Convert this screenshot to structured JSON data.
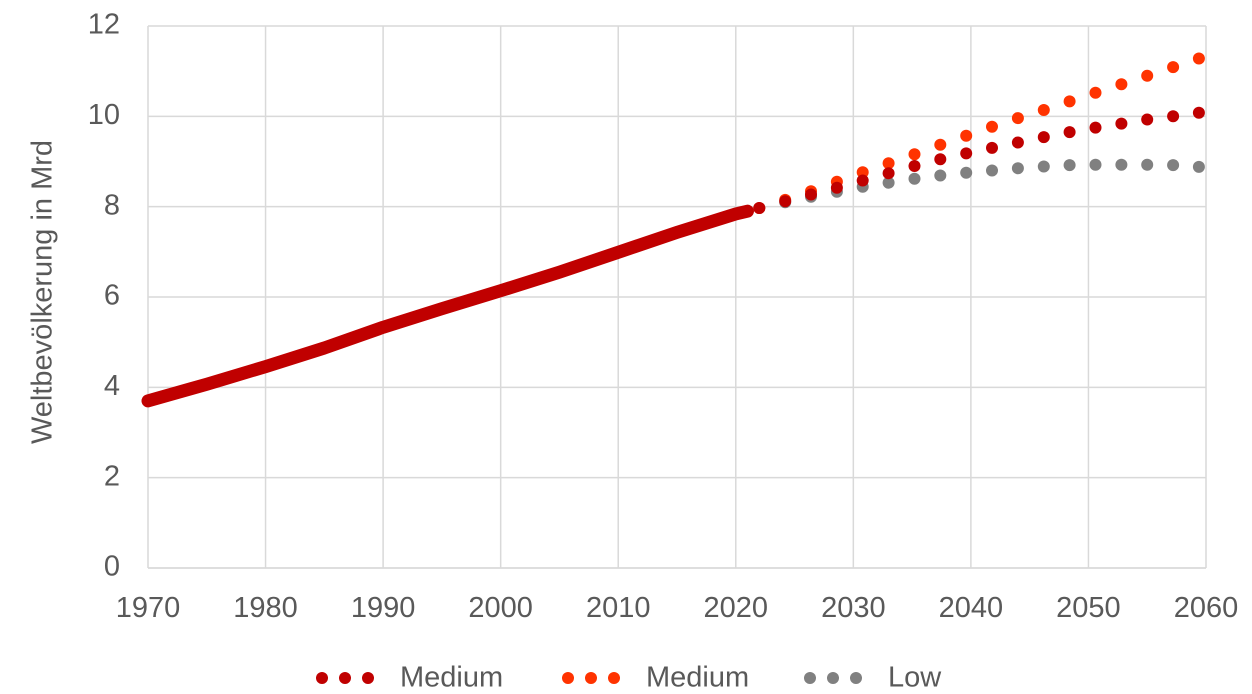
{
  "chart_data": {
    "type": "line",
    "ylabel": "Weltbevölkerung in Mrd",
    "xlabel": "",
    "xlim": [
      1970,
      2060
    ],
    "ylim": [
      0,
      12
    ],
    "x_ticks": [
      "1970",
      "1980",
      "1990",
      "2000",
      "2010",
      "2020",
      "2030",
      "2040",
      "2050",
      "2060"
    ],
    "y_ticks": [
      "0",
      "2",
      "4",
      "6",
      "8",
      "10",
      "12"
    ],
    "grid": true,
    "legend_position": "bottom",
    "historical": {
      "color": "#c00000",
      "x": [
        1970,
        1975,
        1980,
        1985,
        1990,
        1995,
        2000,
        2005,
        2010,
        2015,
        2020,
        2021
      ],
      "y": [
        3.7,
        4.07,
        4.46,
        4.87,
        5.33,
        5.74,
        6.14,
        6.55,
        6.99,
        7.43,
        7.84,
        7.9
      ]
    },
    "series": [
      {
        "name": "Medium",
        "color": "#c00000",
        "x": [
          2022,
          2024.2,
          2026.4,
          2028.6,
          2030.8,
          2033,
          2035.2,
          2037.4,
          2039.6,
          2041.8,
          2044,
          2046.2,
          2048.4,
          2050.6,
          2052.8,
          2055,
          2057.2,
          2059.4
        ],
        "y": [
          7.97,
          8.12,
          8.27,
          8.42,
          8.58,
          8.74,
          8.9,
          9.05,
          9.18,
          9.3,
          9.42,
          9.54,
          9.65,
          9.75,
          9.84,
          9.93,
          10.0,
          10.08
        ]
      },
      {
        "name": "Medium",
        "color": "#ff3300",
        "x": [
          2022,
          2024.2,
          2026.4,
          2028.6,
          2030.8,
          2033,
          2035.2,
          2037.4,
          2039.6,
          2041.8,
          2044,
          2046.2,
          2048.4,
          2050.6,
          2052.8,
          2055,
          2057.2,
          2059.4
        ],
        "y": [
          7.97,
          8.15,
          8.34,
          8.55,
          8.76,
          8.96,
          9.16,
          9.37,
          9.57,
          9.77,
          9.96,
          10.14,
          10.33,
          10.52,
          10.71,
          10.9,
          11.09,
          11.28
        ]
      },
      {
        "name": "Low",
        "color": "#808080",
        "x": [
          2022,
          2024.2,
          2026.4,
          2028.6,
          2030.8,
          2033,
          2035.2,
          2037.4,
          2039.6,
          2041.8,
          2044,
          2046.2,
          2048.4,
          2050.6,
          2052.8,
          2055,
          2057.2,
          2059.4
        ],
        "y": [
          7.97,
          8.1,
          8.22,
          8.33,
          8.44,
          8.53,
          8.62,
          8.69,
          8.75,
          8.8,
          8.85,
          8.89,
          8.92,
          8.93,
          8.93,
          8.93,
          8.92,
          8.88
        ]
      }
    ]
  }
}
